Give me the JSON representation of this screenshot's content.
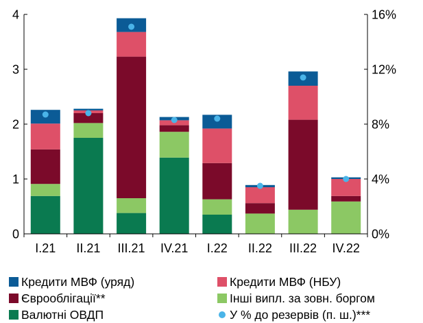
{
  "chart_data": {
    "type": "bar",
    "stacked": true,
    "categories": [
      "I.21",
      "II.21",
      "III.21",
      "IV.21",
      "I.22",
      "II.22",
      "III.22",
      "IV.22"
    ],
    "ylim": [
      0,
      4
    ],
    "y_ticks": [
      "0",
      "1",
      "2",
      "3",
      "4"
    ],
    "y2lim": [
      0,
      16
    ],
    "y2_ticks": [
      "0%",
      "4%",
      "8%",
      "12%",
      "16%"
    ],
    "grid": false,
    "legend_position": "bottom",
    "series": [
      {
        "name": "Валютні ОВДП",
        "color": "#0a7a50",
        "values": [
          0.69,
          1.75,
          0.38,
          1.39,
          0.35,
          0.0,
          0.0,
          0.0
        ]
      },
      {
        "name": "Інші випл. за зовн. боргом",
        "color": "#8cc864",
        "values": [
          0.22,
          0.27,
          0.27,
          0.47,
          0.28,
          0.37,
          0.44,
          0.59
        ]
      },
      {
        "name": "Єврооблігації**",
        "color": "#7b0a2a",
        "values": [
          0.63,
          0.18,
          2.58,
          0.12,
          0.66,
          0.19,
          1.64,
          0.1
        ]
      },
      {
        "name": "Кредити МВФ (НБУ)",
        "color": "#de5068",
        "values": [
          0.47,
          0.05,
          0.45,
          0.09,
          0.63,
          0.29,
          0.62,
          0.31
        ]
      },
      {
        "name": "Кредити МВФ (уряд)",
        "color": "#0b5b96",
        "values": [
          0.25,
          0.03,
          0.25,
          0.06,
          0.25,
          0.04,
          0.26,
          0.03
        ]
      }
    ],
    "markers": {
      "name": "У % до резервів (п. ш.)***",
      "color": "#4ab4e8",
      "axis": "secondary",
      "values": [
        8.7,
        8.8,
        15.1,
        8.3,
        8.4,
        3.5,
        11.4,
        4.0
      ]
    }
  },
  "legend": [
    {
      "label": "Кредити МВФ (уряд)",
      "color": "#0b5b96",
      "shape": "square"
    },
    {
      "label": "Кредити МВФ (НБУ)",
      "color": "#de5068",
      "shape": "square"
    },
    {
      "label": "Єврооблігації**",
      "color": "#7b0a2a",
      "shape": "square"
    },
    {
      "label": "Інші випл. за зовн. боргом",
      "color": "#8cc864",
      "shape": "square"
    },
    {
      "label": "Валютні ОВДП",
      "color": "#0a7a50",
      "shape": "square"
    },
    {
      "label": "У % до резервів (п. ш.)***",
      "color": "#4ab4e8",
      "shape": "dot"
    }
  ]
}
